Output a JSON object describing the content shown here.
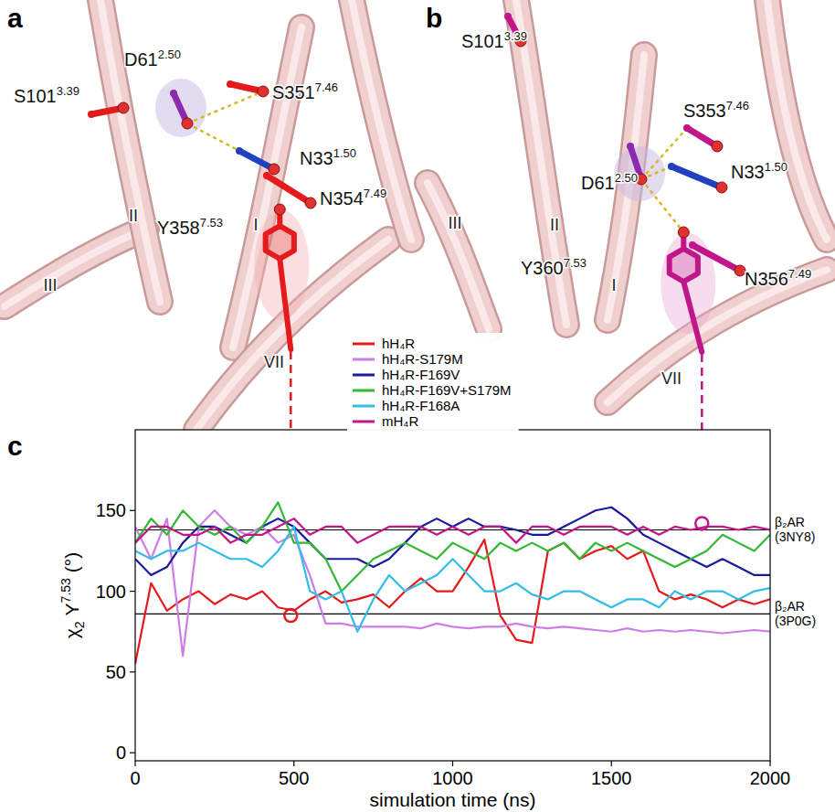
{
  "panel_a": {
    "letter": "a",
    "residues": [
      {
        "name": "S101",
        "superscript": "3.39"
      },
      {
        "name": "D61",
        "superscript": "2.50"
      },
      {
        "name": "S351",
        "superscript": "7.46"
      },
      {
        "name": "N33",
        "superscript": "1.50"
      },
      {
        "name": "N354",
        "superscript": "7.49"
      },
      {
        "name": "Y358",
        "superscript": "7.53"
      }
    ],
    "helices": [
      "III",
      "II",
      "I",
      "VII"
    ]
  },
  "panel_b": {
    "letter": "b",
    "residues": [
      {
        "name": "S101",
        "superscript": "3.39"
      },
      {
        "name": "S353",
        "superscript": "7.46"
      },
      {
        "name": "D61",
        "superscript": "2.50"
      },
      {
        "name": "N33",
        "superscript": "1.50"
      },
      {
        "name": "Y360",
        "superscript": "7.53"
      },
      {
        "name": "N356",
        "superscript": "7.49"
      }
    ],
    "helices": [
      "III",
      "II",
      "I",
      "VII"
    ]
  },
  "chart_data": {
    "type": "line",
    "panel_letter": "c",
    "x_label": "simulation time (ns)",
    "y_label": {
      "symbol": "χ",
      "subscript": "2",
      "residue": "Y",
      "superscript": "7.53",
      "unit": "(°)"
    },
    "x": [
      0,
      50,
      100,
      150,
      200,
      250,
      300,
      350,
      400,
      450,
      500,
      550,
      600,
      650,
      700,
      750,
      800,
      850,
      900,
      950,
      1000,
      1050,
      1100,
      1150,
      1200,
      1250,
      1300,
      1350,
      1400,
      1450,
      1500,
      1550,
      1600,
      1650,
      1700,
      1750,
      1800,
      1850,
      1900,
      1950,
      2000
    ],
    "series": [
      {
        "name": "hH₄R",
        "color": "#e41a1c",
        "values": [
          55,
          105,
          88,
          95,
          100,
          92,
          98,
          95,
          100,
          90,
          88,
          95,
          100,
          93,
          95,
          98,
          90,
          100,
          108,
          100,
          100,
          115,
          132,
          85,
          70,
          68,
          125,
          130,
          120,
          125,
          128,
          120,
          125,
          100,
          95,
          98,
          95,
          90,
          95,
          92,
          95
        ]
      },
      {
        "name": "hH₄R-S179M",
        "color": "#cc7ee6",
        "values": [
          140,
          120,
          145,
          60,
          140,
          150,
          140,
          135,
          140,
          130,
          135,
          110,
          80,
          80,
          78,
          78,
          78,
          78,
          77,
          80,
          78,
          77,
          78,
          78,
          80,
          78,
          77,
          78,
          77,
          76,
          75,
          77,
          75,
          76,
          75,
          76,
          75,
          74,
          75,
          76,
          75
        ]
      },
      {
        "name": "hH₄R-F169V",
        "color": "#1a1a9c",
        "values": [
          120,
          110,
          115,
          130,
          140,
          140,
          135,
          130,
          140,
          145,
          140,
          130,
          120,
          120,
          120,
          115,
          120,
          130,
          140,
          145,
          140,
          145,
          140,
          140,
          138,
          135,
          135,
          140,
          145,
          150,
          152,
          145,
          135,
          130,
          125,
          120,
          115,
          120,
          115,
          110,
          110
        ]
      },
      {
        "name": "hH₄R-F169V+S179M",
        "color": "#33b833",
        "values": [
          130,
          145,
          135,
          150,
          140,
          135,
          140,
          130,
          140,
          155,
          130,
          130,
          120,
          100,
          110,
          120,
          125,
          130,
          125,
          120,
          130,
          125,
          120,
          130,
          125,
          130,
          125,
          130,
          120,
          130,
          125,
          130,
          125,
          120,
          115,
          120,
          125,
          135,
          130,
          125,
          135
        ]
      },
      {
        "name": "hH₄R-F168A",
        "color": "#33bce6",
        "values": [
          125,
          120,
          125,
          125,
          130,
          125,
          120,
          120,
          115,
          125,
          140,
          100,
          95,
          100,
          75,
          95,
          110,
          100,
          105,
          110,
          120,
          110,
          100,
          100,
          105,
          98,
          95,
          100,
          100,
          95,
          90,
          95,
          95,
          90,
          100,
          95,
          100,
          100,
          95,
          100,
          102
        ]
      },
      {
        "name": "mH₄R",
        "color": "#c0168a",
        "values": [
          130,
          140,
          140,
          135,
          135,
          140,
          130,
          135,
          135,
          140,
          145,
          135,
          140,
          140,
          130,
          135,
          140,
          140,
          140,
          135,
          140,
          135,
          140,
          140,
          130,
          140,
          140,
          135,
          140,
          140,
          140,
          135,
          140,
          135,
          140,
          138,
          140,
          140,
          138,
          140,
          138
        ]
      }
    ],
    "xlim": [
      0,
      2000
    ],
    "ylim": [
      -5,
      200
    ],
    "xticks": [
      0,
      500,
      1000,
      1500,
      2000
    ],
    "yticks": [
      0,
      50,
      100,
      150
    ],
    "reference_lines": [
      {
        "value": 138,
        "label": "β₂AR (3NY8)"
      },
      {
        "value": 86,
        "label": "β₂AR (3P0G)"
      }
    ],
    "highlights": [
      {
        "series": 0,
        "x": 490,
        "y": 85
      },
      {
        "series": 5,
        "x": 1785,
        "y": 142
      }
    ],
    "legend": "top"
  }
}
